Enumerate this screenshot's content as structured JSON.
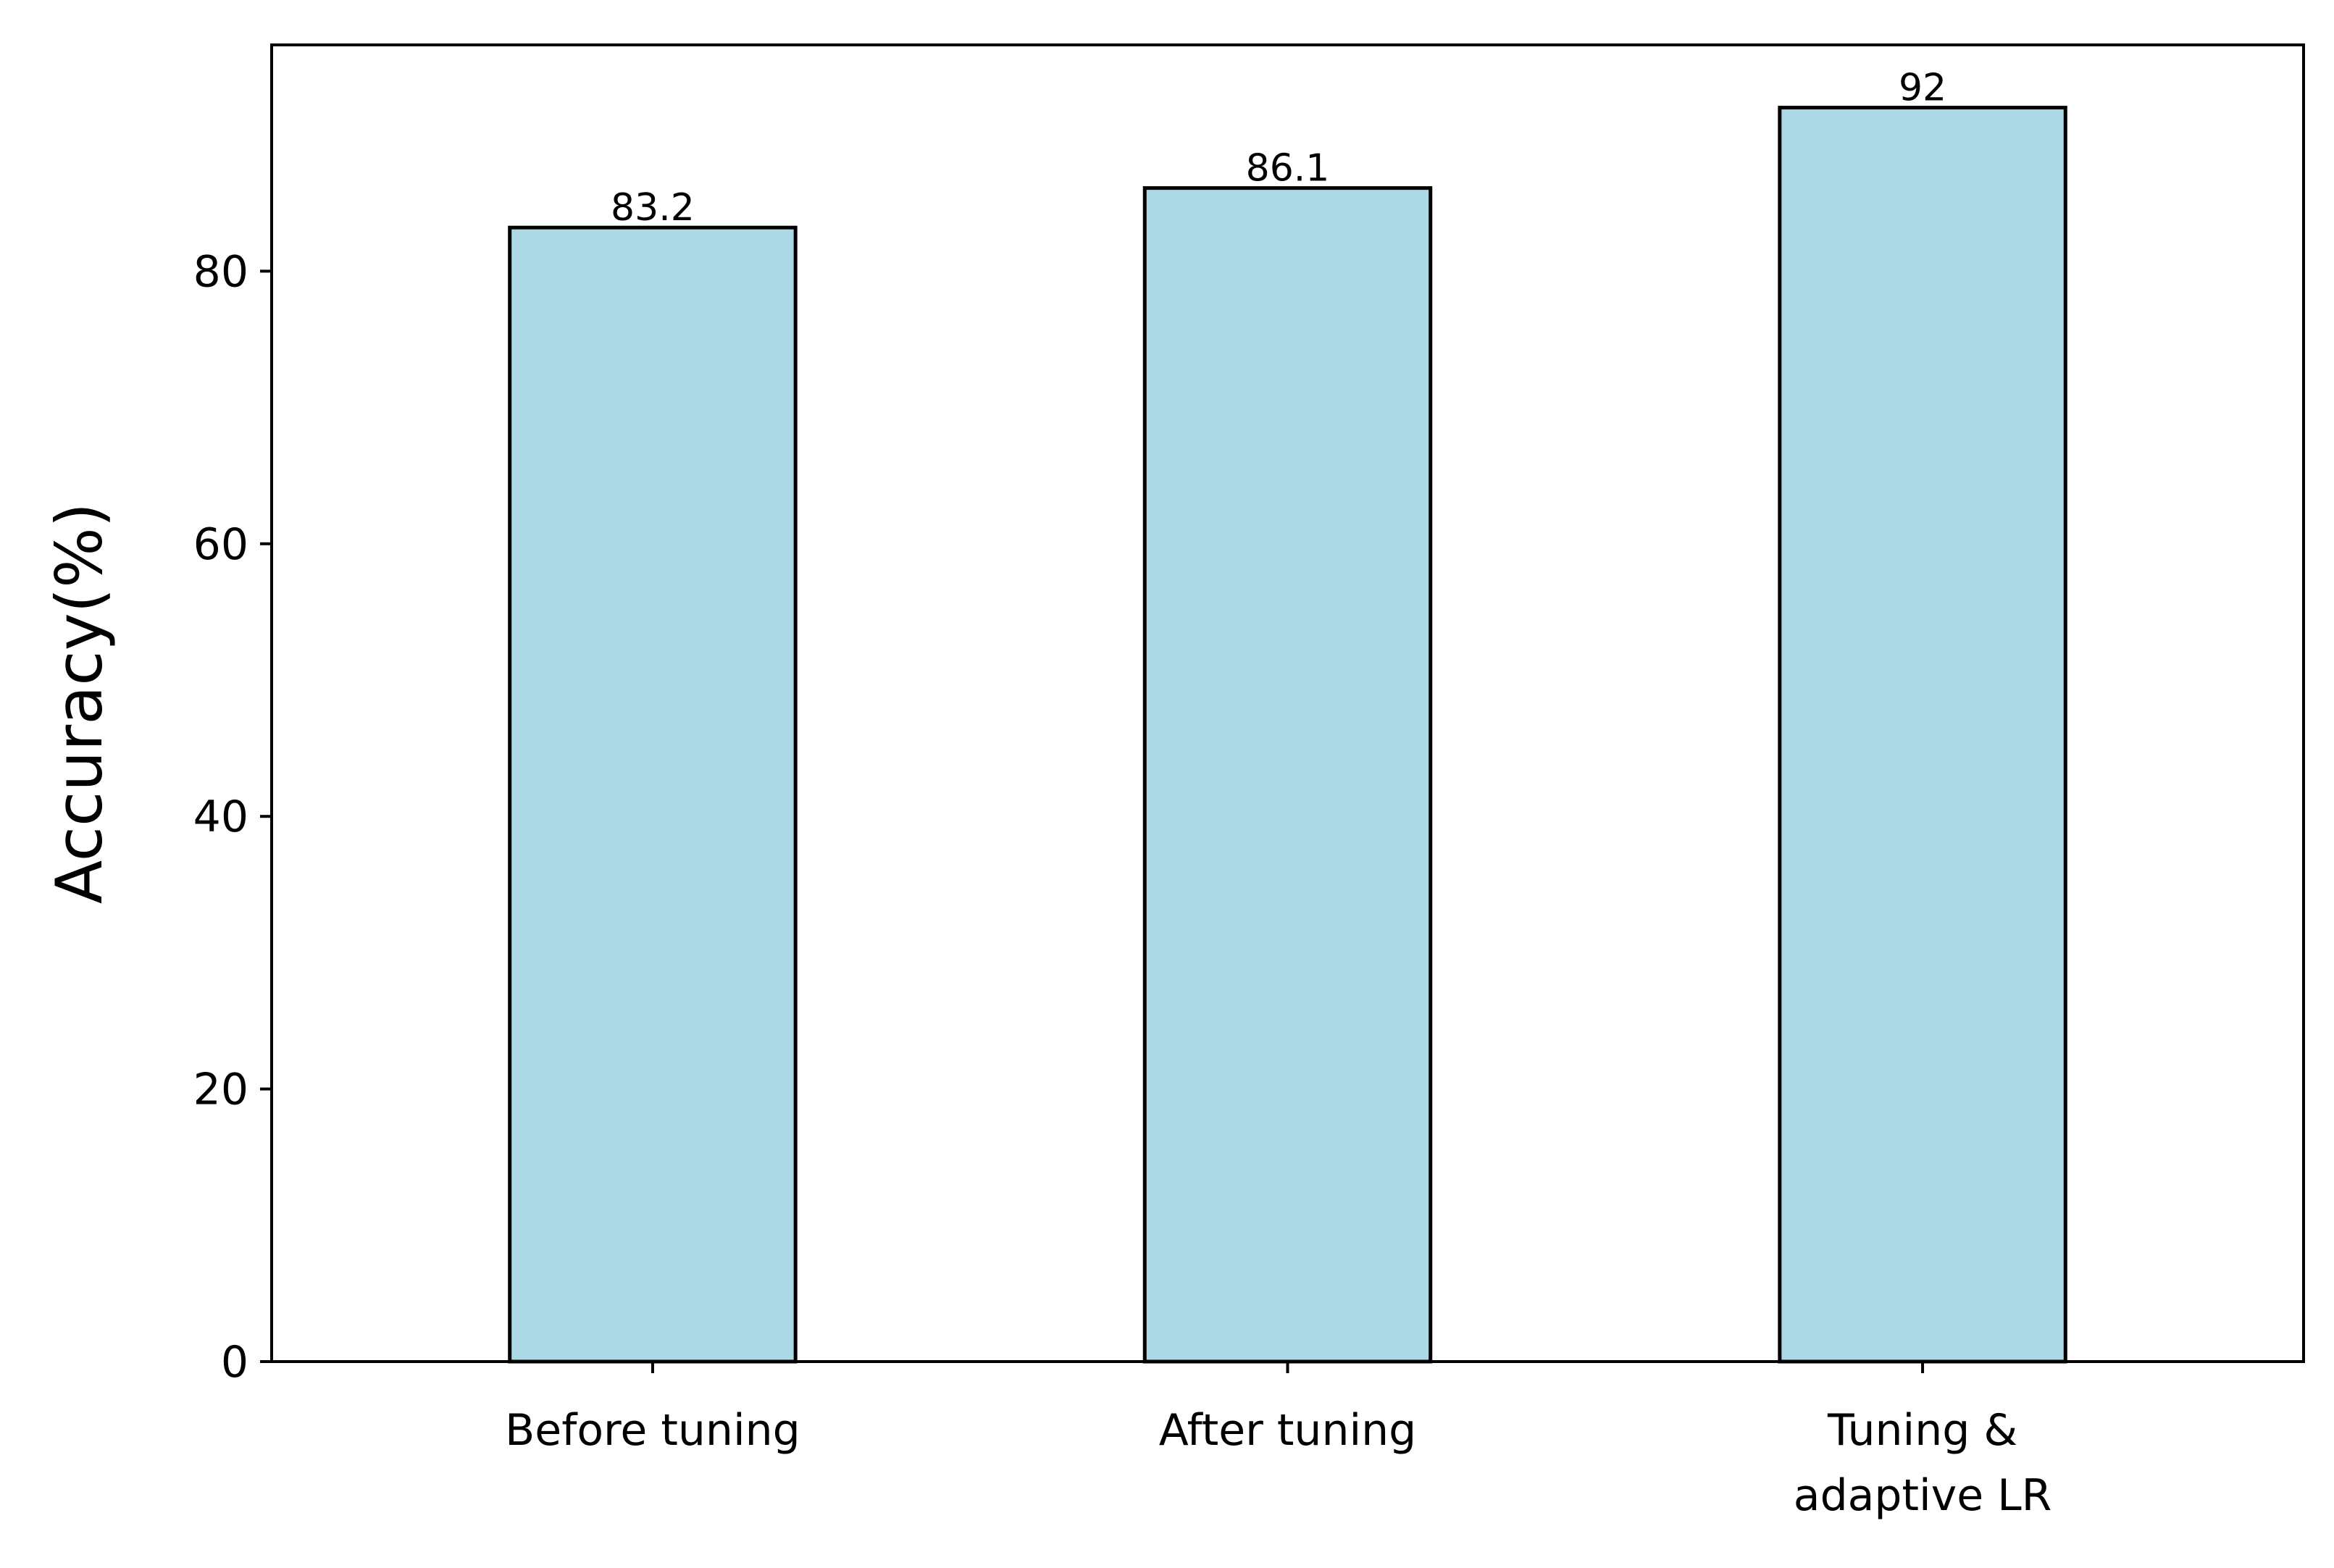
{
  "chart_data": {
    "type": "bar",
    "categories": [
      [
        "Before tuning"
      ],
      [
        "After tuning"
      ],
      [
        "Tuning &",
        "adaptive LR"
      ]
    ],
    "values": [
      83.2,
      86.1,
      92
    ],
    "value_labels": [
      "83.2",
      "86.1",
      "92"
    ],
    "title": "",
    "xlabel": "",
    "ylabel": "Accuracy(%)",
    "ylim": [
      0,
      96.6
    ],
    "yticks": [
      0,
      20,
      40,
      60,
      80
    ],
    "grid": false,
    "bar_color": "#add8e6",
    "edge_color": "#000000"
  }
}
